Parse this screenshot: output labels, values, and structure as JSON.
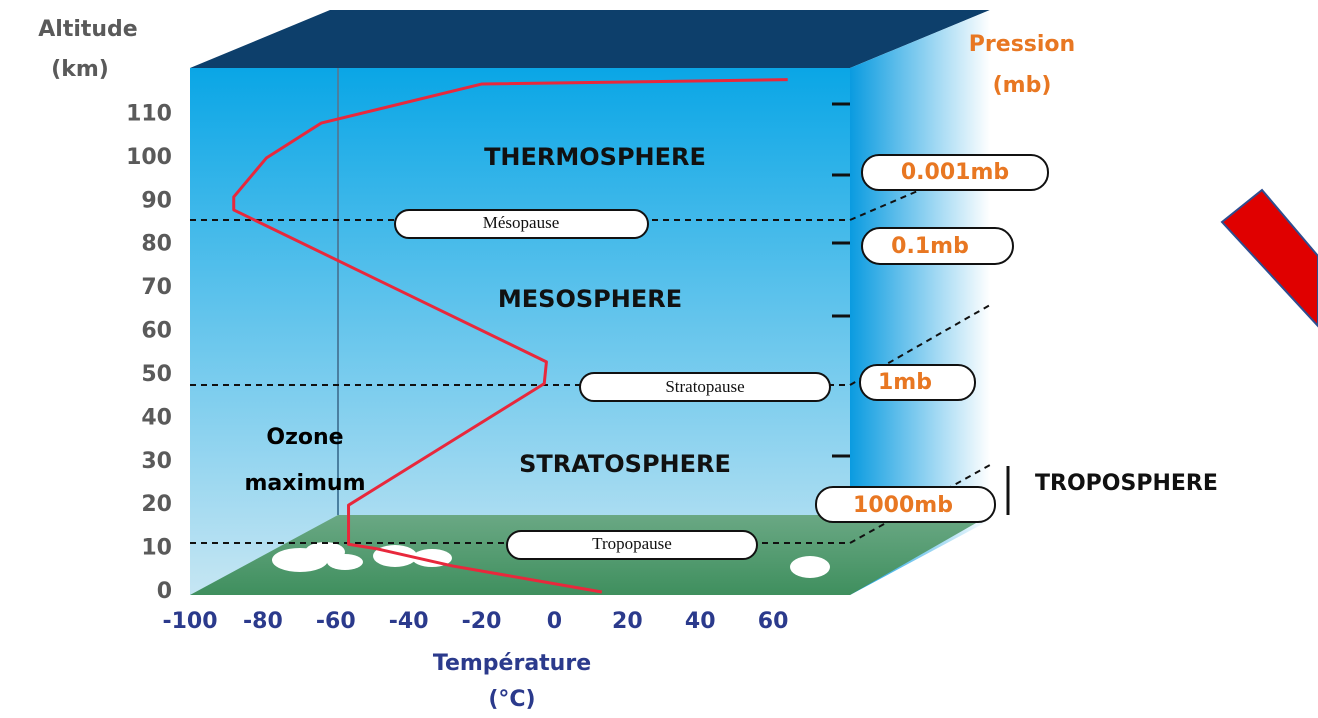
{
  "chart_data": {
    "type": "line",
    "ylabel": [
      "Altitude",
      "(km)"
    ],
    "xlabel": [
      "Température",
      "(°C)"
    ],
    "y2label": [
      "Pression",
      "(mb)"
    ],
    "x": [
      13,
      -28,
      -49,
      -56.5,
      -56.5,
      -2.8,
      -2.2,
      -88,
      -88,
      -79,
      -64,
      -20,
      64
    ],
    "values": [
      0,
      6,
      10,
      11,
      20,
      48,
      53,
      88,
      91,
      100,
      108,
      117,
      118
    ],
    "color": "#e8283c",
    "xlim": [
      -100,
      80
    ],
    "ylim": [
      0,
      120
    ],
    "xticks": [
      -100,
      -80,
      -60,
      -40,
      -20,
      0,
      20,
      40,
      60
    ],
    "yticks": [
      0,
      10,
      20,
      30,
      40,
      50,
      60,
      70,
      80,
      90,
      100,
      110
    ],
    "layers": [
      "THERMOSPHERE",
      "MESOSPHERE",
      "STRATOSPHERE"
    ],
    "pauses": [
      "Mésopause",
      "Stratopause",
      "Tropopause"
    ],
    "pressures": [
      "0.001mb",
      "0.1mb",
      "1mb",
      "1000mb"
    ],
    "troposphere": "TROPOSPHERE",
    "ozone": [
      "Ozone",
      "maximum"
    ]
  }
}
